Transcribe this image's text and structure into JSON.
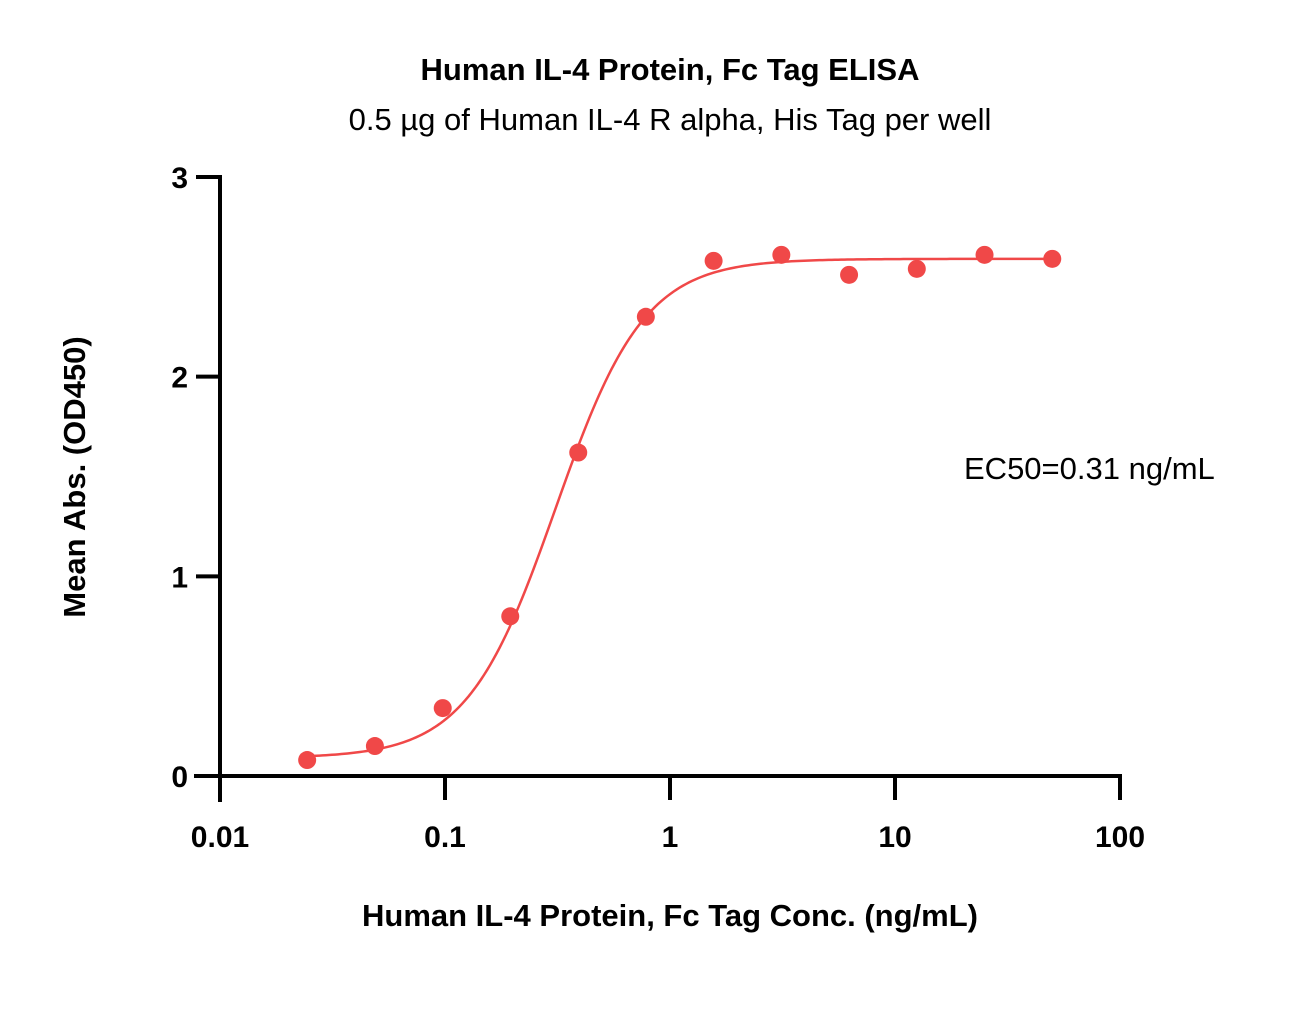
{
  "chart_data": {
    "type": "scatter",
    "title": "Human IL-4 Protein, Fc Tag ELISA",
    "subtitle": "0.5 µg of Human IL-4 R alpha, His Tag per well",
    "xlabel": "Human IL-4 Protein, Fc Tag Conc. (ng/mL)",
    "ylabel": "Mean Abs. (OD450)",
    "xscale": "log",
    "xlim": [
      0.01,
      100
    ],
    "ylim": [
      0,
      3
    ],
    "x_ticks": [
      0.01,
      0.1,
      1,
      10,
      100
    ],
    "x_tick_labels": [
      "0.01",
      "0.1",
      "1",
      "10",
      "100"
    ],
    "y_ticks": [
      0,
      1,
      2,
      3
    ],
    "y_tick_labels": [
      "0",
      "1",
      "2",
      "3"
    ],
    "grid": false,
    "annotation": "EC50=0.31 ng/mL",
    "colors": {
      "series": "#f04848",
      "axis": "#000000"
    },
    "series": [
      {
        "x": [
          0.0244,
          0.0488,
          0.0977,
          0.195,
          0.391,
          0.781,
          1.5625,
          3.125,
          6.25,
          12.5,
          25,
          50
        ],
        "y": [
          0.08,
          0.15,
          0.34,
          0.8,
          1.62,
          2.3,
          2.58,
          2.61,
          2.51,
          2.54,
          2.61,
          2.59
        ],
        "fit": {
          "model": "4PL",
          "bottom": 0.09,
          "top": 2.59,
          "ec50": 0.31,
          "hill": 2.2
        }
      }
    ]
  }
}
